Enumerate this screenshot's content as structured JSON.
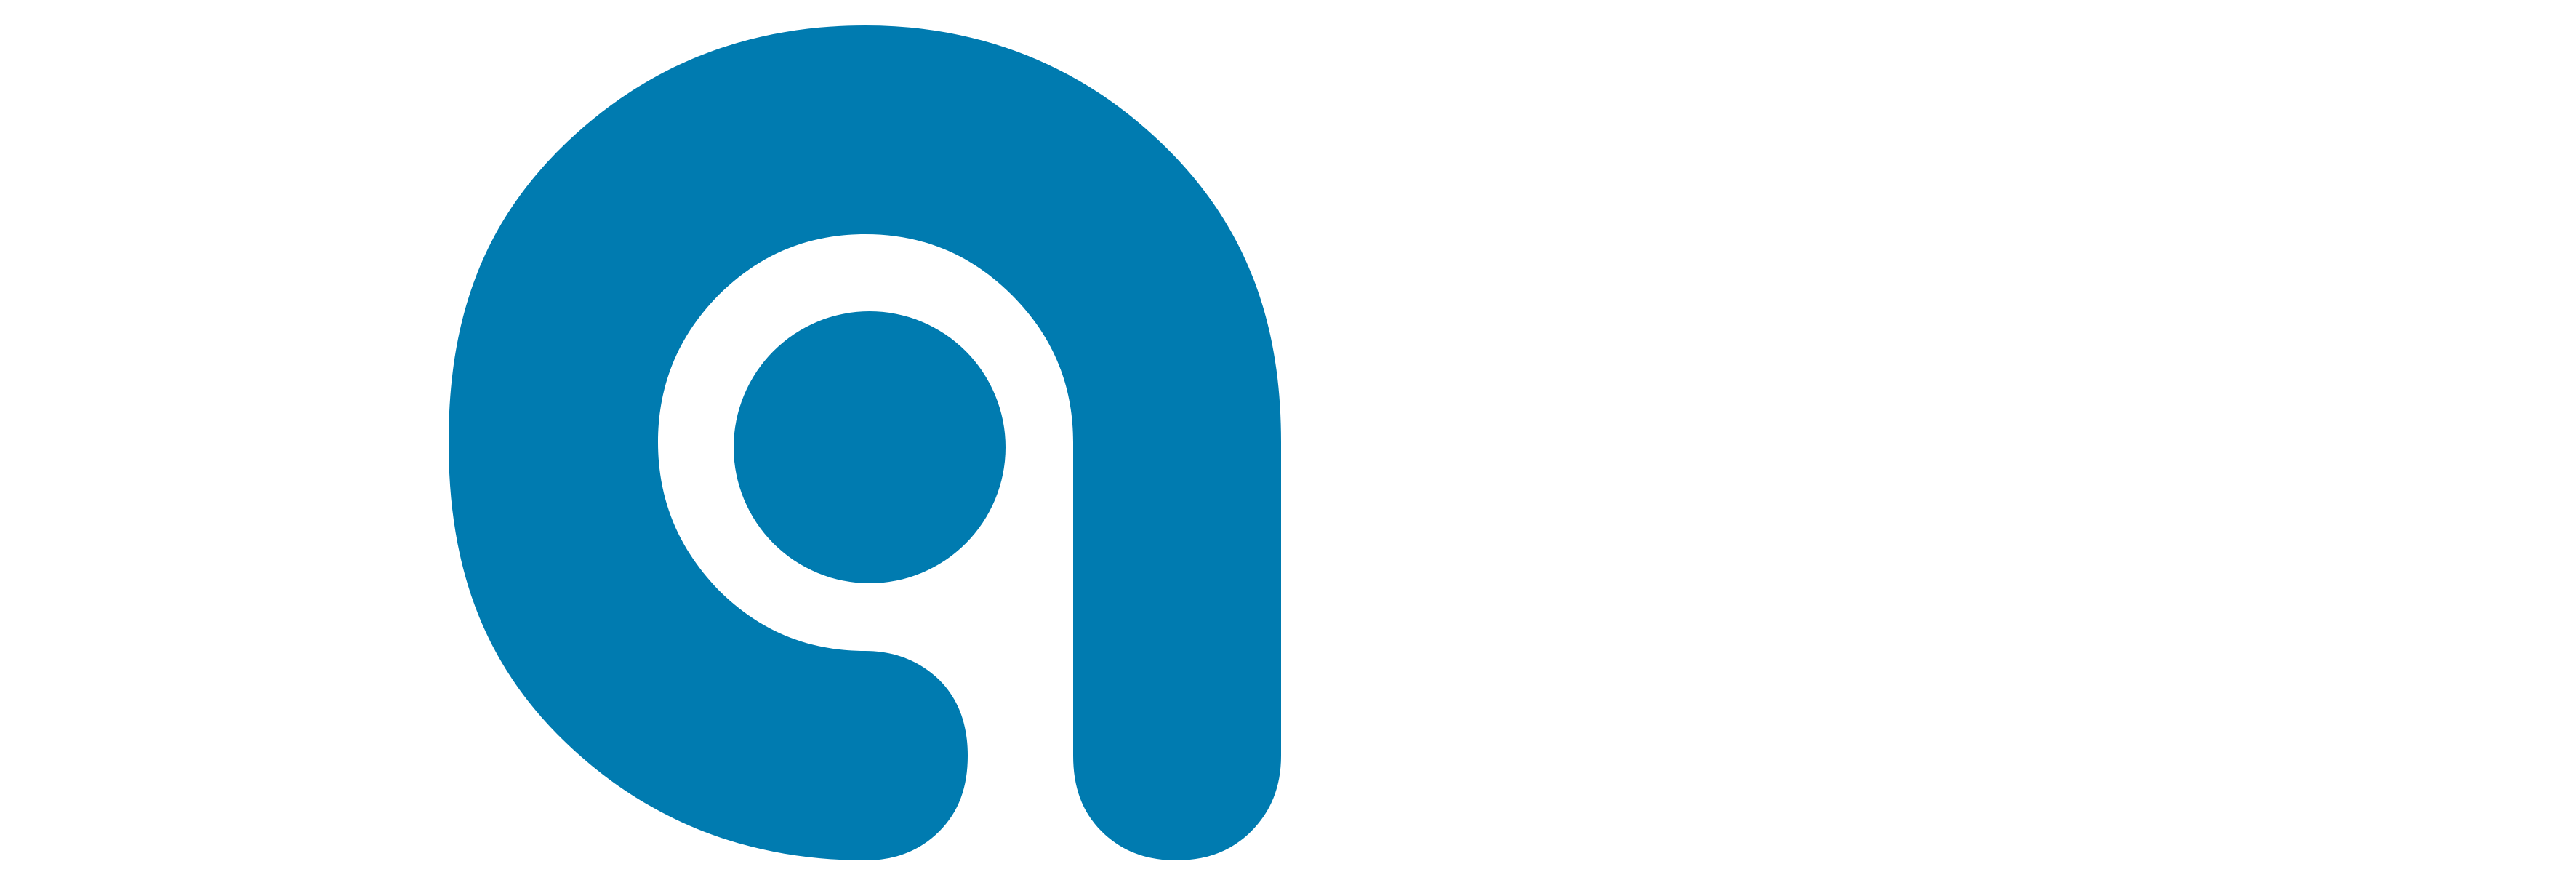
{
  "logo": {
    "icon": "letter-a-logo-mark",
    "brand_color": "#007BB0",
    "background_color": "#FFFFFF"
  }
}
